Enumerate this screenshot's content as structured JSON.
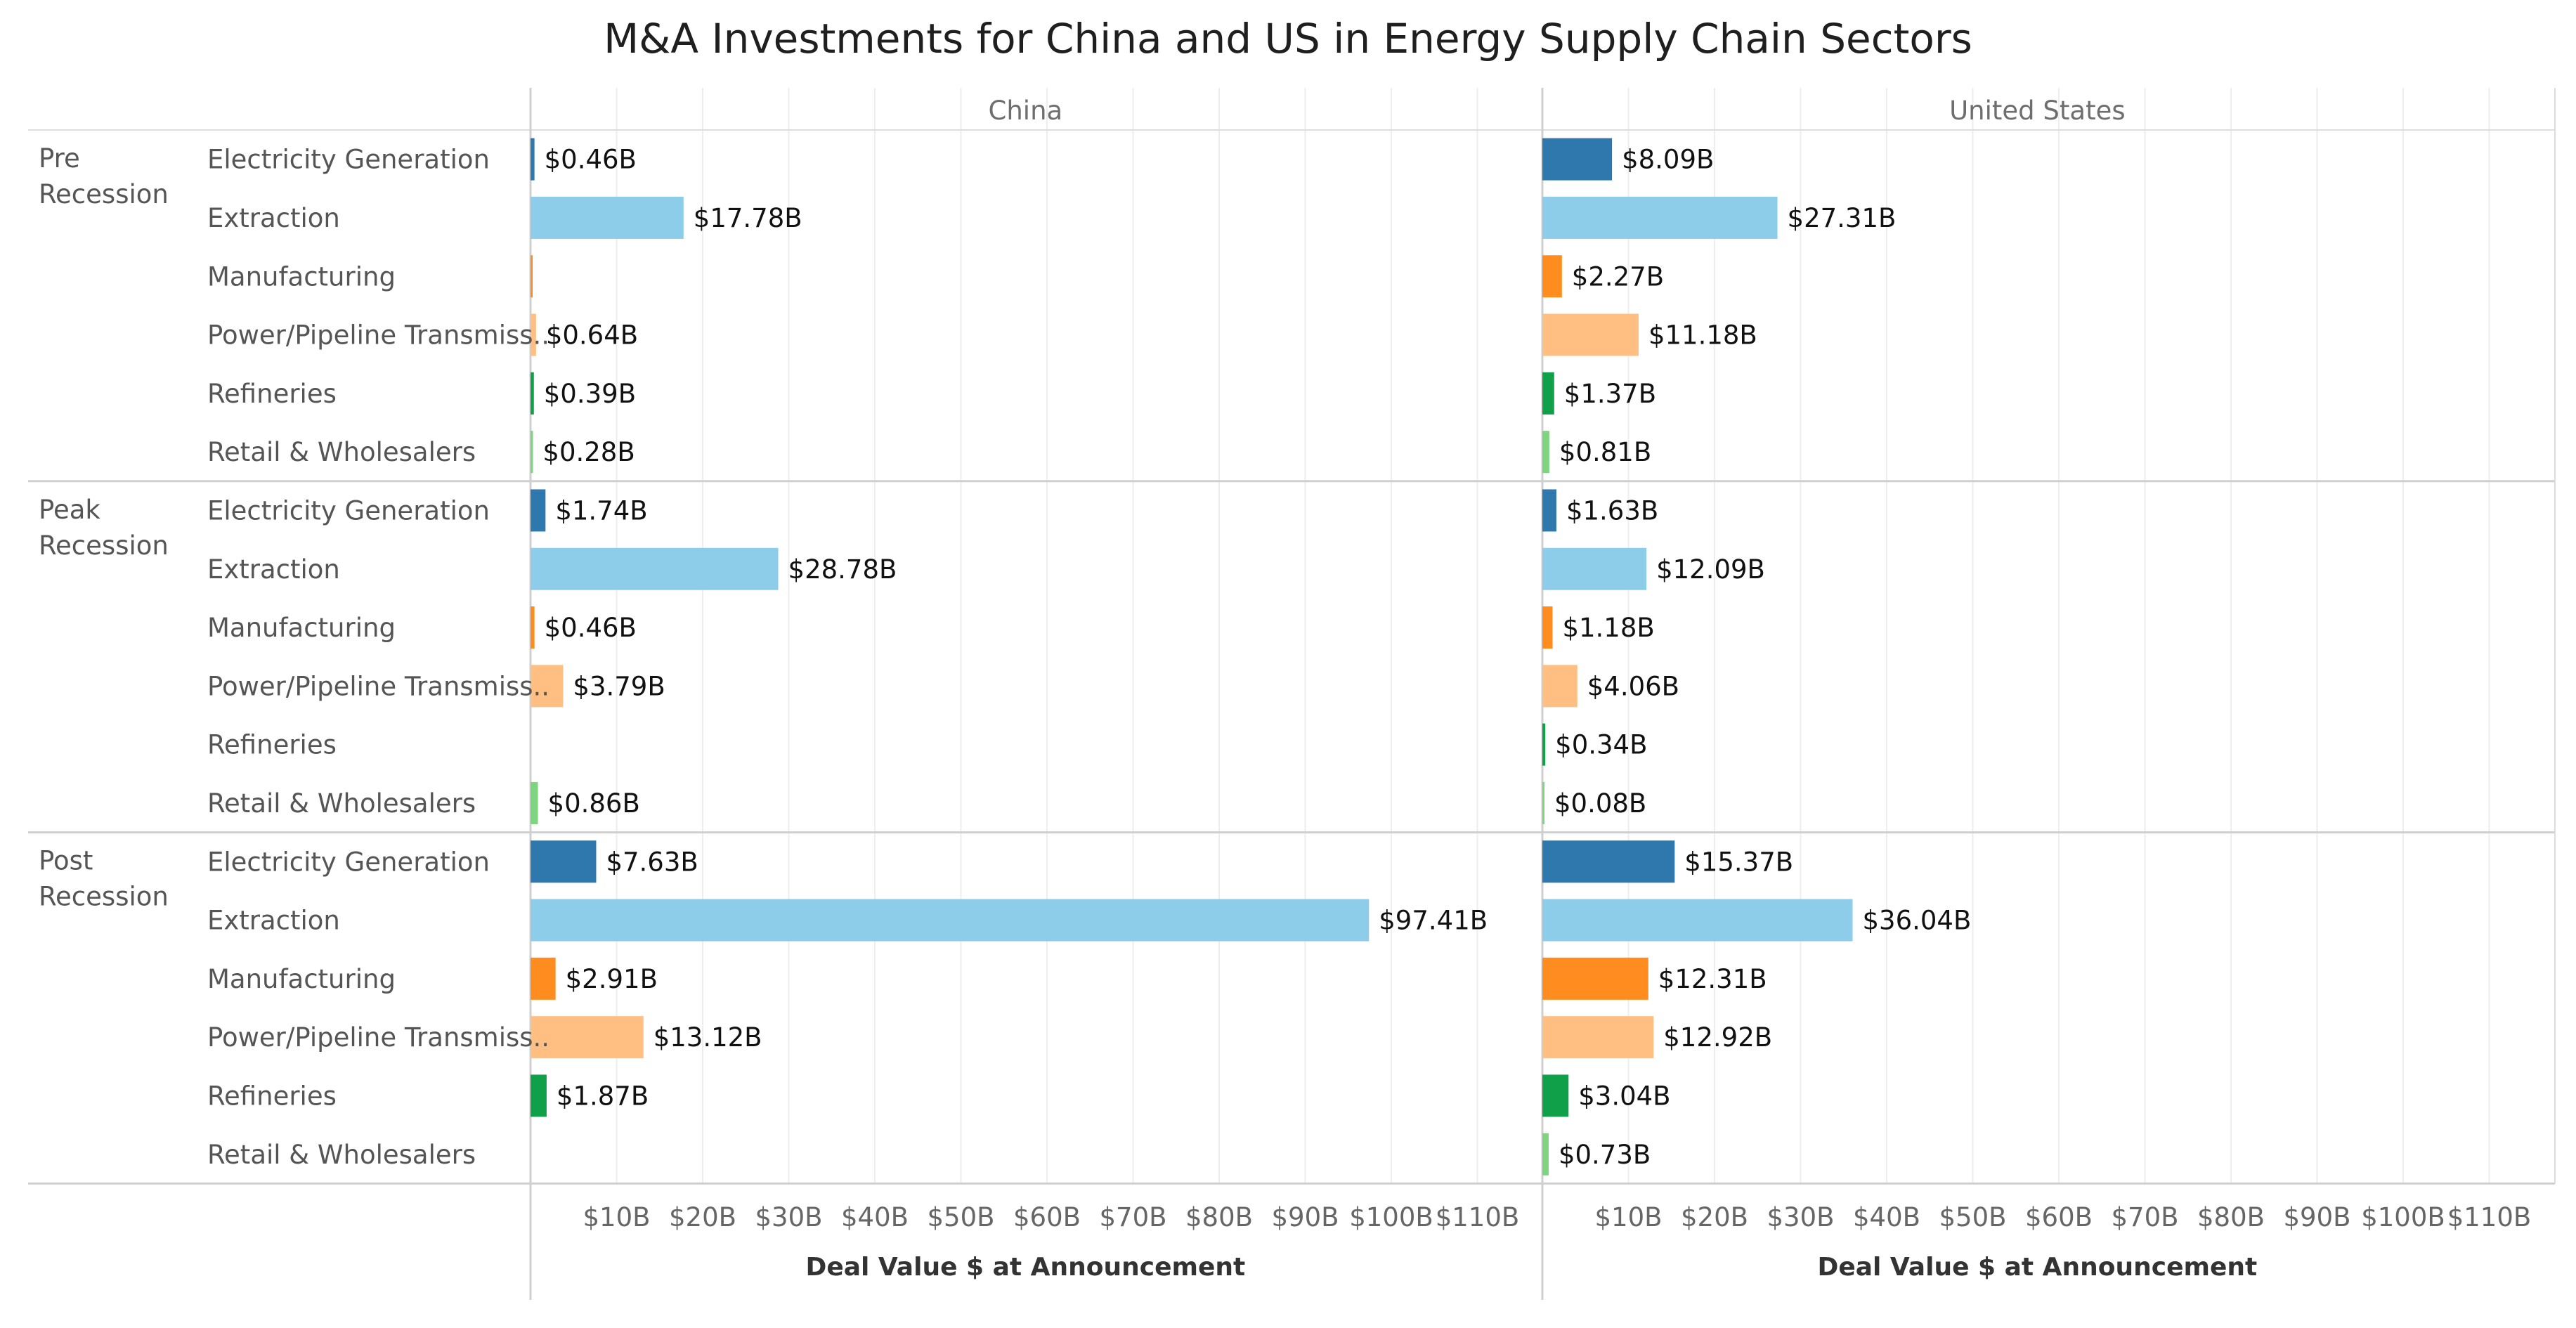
{
  "chart_data": {
    "type": "bar",
    "orientation": "horizontal",
    "title": "M&A Investments for China and US in Energy Supply Chain Sectors",
    "columns": [
      "China",
      "United States"
    ],
    "periods": [
      "Pre Recession",
      "Peak Recession",
      "Post Recession"
    ],
    "period_lines": [
      [
        "Pre",
        "Recession"
      ],
      [
        "Peak",
        "Recession"
      ],
      [
        "Post",
        "Recession"
      ]
    ],
    "categories": [
      "Electricity Generation",
      "Extraction",
      "Manufacturing",
      "Power/Pipeline Transmiss..",
      "Refineries",
      "Retail & Wholesalers"
    ],
    "category_colors": [
      "#2e78ad",
      "#8ecdea",
      "#ff8c1e",
      "#ffbe82",
      "#10a04a",
      "#7fd480"
    ],
    "values": {
      "China": [
        [
          0.46,
          17.78,
          0.05,
          0.64,
          0.39,
          0.28
        ],
        [
          1.74,
          28.78,
          0.46,
          3.79,
          null,
          0.86
        ],
        [
          7.63,
          97.41,
          2.91,
          13.12,
          1.87,
          null
        ]
      ],
      "United States": [
        [
          8.09,
          27.31,
          2.27,
          11.18,
          1.37,
          0.81
        ],
        [
          1.63,
          12.09,
          1.18,
          4.06,
          0.34,
          0.08
        ],
        [
          15.37,
          36.04,
          12.31,
          12.92,
          3.04,
          0.73
        ]
      ]
    },
    "labels": {
      "China": [
        [
          "$0.46B",
          "$17.78B",
          "",
          "$0.64B",
          "$0.39B",
          "$0.28B"
        ],
        [
          "$1.74B",
          "$28.78B",
          "$0.46B",
          "$3.79B",
          "",
          "$0.86B"
        ],
        [
          "$7.63B",
          "$97.41B",
          "$2.91B",
          "$13.12B",
          "$1.87B",
          ""
        ]
      ],
      "United States": [
        [
          "$8.09B",
          "$27.31B",
          "$2.27B",
          "$11.18B",
          "$1.37B",
          "$0.81B"
        ],
        [
          "$1.63B",
          "$12.09B",
          "$1.18B",
          "$4.06B",
          "$0.34B",
          "$0.08B"
        ],
        [
          "$15.37B",
          "$36.04B",
          "$12.31B",
          "$12.92B",
          "$3.04B",
          "$0.73B"
        ]
      ]
    },
    "xlim": [
      0,
      115
    ],
    "xticks": [
      10,
      20,
      30,
      40,
      50,
      60,
      70,
      80,
      90,
      100,
      110
    ],
    "xtick_labels": [
      "$10B",
      "$20B",
      "$30B",
      "$40B",
      "$50B",
      "$60B",
      "$70B",
      "$80B",
      "$90B",
      "$100B",
      "$110B"
    ],
    "xlabel": "Deal Value $ at Announcement",
    "grid": true
  }
}
